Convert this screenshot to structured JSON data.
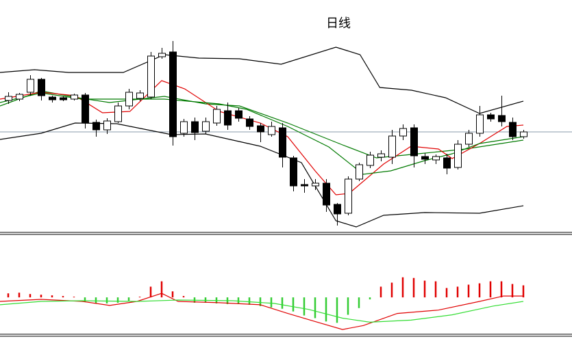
{
  "chart_data": [
    {
      "type": "candlestick",
      "title": "日线",
      "ylim": [
        0,
        340
      ],
      "up_color": "#ffffff",
      "down_color": "#000000",
      "last_price_line": true,
      "open": [
        193,
        195,
        205,
        224,
        198,
        197,
        195,
        201,
        161,
        150,
        162,
        185,
        196,
        198,
        257,
        264,
        145,
        162,
        148,
        160,
        178,
        178,
        166,
        156,
        143,
        153,
        109,
        70,
        68,
        72,
        41,
        28,
        78,
        98,
        110,
        110,
        141,
        153,
        111,
        106,
        109,
        95,
        129,
        145,
        172,
        171,
        161,
        140
      ],
      "high": [
        205,
        204,
        230,
        226,
        200,
        199,
        203,
        204,
        165,
        167,
        190,
        210,
        208,
        264,
        270,
        280,
        166,
        168,
        168,
        185,
        190,
        182,
        170,
        160,
        162,
        160,
        112,
        78,
        78,
        78,
        43,
        82,
        102,
        118,
        120,
        150,
        158,
        158,
        116,
        114,
        115,
        135,
        150,
        185,
        175,
        200,
        168,
        150
      ],
      "low": [
        188,
        192,
        200,
        193,
        190,
        192,
        193,
        152,
        140,
        144,
        160,
        180,
        192,
        195,
        254,
        127,
        140,
        135,
        144,
        156,
        150,
        162,
        150,
        132,
        140,
        95,
        60,
        58,
        62,
        30,
        10,
        25,
        75,
        94,
        104,
        100,
        135,
        95,
        100,
        100,
        85,
        92,
        125,
        140,
        162,
        155,
        135,
        137
      ],
      "close": [
        199,
        202,
        224,
        200,
        194,
        194,
        201,
        160,
        150,
        163,
        185,
        205,
        204,
        258,
        262,
        140,
        162,
        146,
        162,
        180,
        157,
        167,
        155,
        147,
        155,
        110,
        68,
        68,
        72,
        40,
        27,
        78,
        99,
        113,
        115,
        141,
        152,
        112,
        107,
        111,
        94,
        129,
        145,
        172,
        166,
        162,
        140,
        147
      ],
      "series": [
        {
          "name": "upper",
          "color": "#000000",
          "x": [
            -0.75,
            2.4,
            5.5,
            10.5,
            14.25,
            17.4,
            21.1,
            24.9,
            29.9,
            32.1,
            33.9,
            36.8,
            39.9,
            43,
            47
          ],
          "values": [
            234,
            238,
            234,
            234,
            260,
            255,
            254,
            246,
            271,
            260,
            212,
            208,
            197,
            174,
            192
          ]
        },
        {
          "name": "middle",
          "color": "#007a00",
          "x": [
            -0.75,
            3,
            6.75,
            9.25,
            14.25,
            18,
            21.1,
            25.5,
            30.5,
            33.6,
            37.4,
            41.75,
            47
          ],
          "values": [
            185,
            207,
            196,
            190,
            199,
            188,
            185,
            160,
            128,
            109,
            115,
            122,
            135
          ]
        },
        {
          "name": "lower",
          "color": "#000000",
          "x": [
            -0.75,
            3,
            6.1,
            9.9,
            14.9,
            18,
            23,
            26.75,
            29.9,
            31.75,
            34.25,
            38,
            43,
            47
          ],
          "values": [
            136,
            145,
            160,
            159,
            143,
            144,
            126,
            102,
            17,
            8,
            25,
            29,
            28,
            39
          ]
        },
        {
          "name": "ma5",
          "color": "#e00000",
          "x": [
            -0.75,
            3,
            6.1,
            8.6,
            11.1,
            14,
            16.1,
            19.25,
            23,
            25.5,
            28,
            29.9,
            31.1,
            34.25,
            36.75,
            39.25,
            40.5,
            43,
            45.5,
            47
          ],
          "values": [
            195,
            205,
            200,
            175,
            177,
            222,
            210,
            177,
            160,
            140,
            90,
            55,
            57,
            100,
            126,
            122,
            108,
            130,
            155,
            157
          ]
        },
        {
          "name": "ma10",
          "color": "#007a00",
          "x": [
            -0.75,
            3,
            6.75,
            10.5,
            14.25,
            19.25,
            21.75,
            25.5,
            29.25,
            32.4,
            34.9,
            38,
            40.5,
            43,
            47
          ],
          "values": [
            190,
            204,
            195,
            195,
            195,
            188,
            180,
            155,
            125,
            85,
            90,
            105,
            115,
            130,
            140
          ]
        }
      ]
    },
    {
      "type": "macd",
      "ylim": [
        -55,
        94
      ],
      "pos_color": "#e00000",
      "neg_color": "#33cc33",
      "values": [
        6,
        7,
        5,
        4,
        3,
        2,
        1,
        -7,
        -9,
        -9,
        -8,
        -5,
        1,
        16,
        24,
        9,
        2,
        -8,
        -8,
        -9,
        -10,
        -10,
        -11,
        -13,
        -15,
        -17,
        -21,
        -27,
        -31,
        -36,
        -38,
        -26,
        -16,
        -3,
        16,
        22,
        30,
        29,
        25,
        24,
        14,
        16,
        19,
        21,
        24,
        24,
        20,
        18
      ],
      "series": [
        {
          "name": "dif",
          "color": "#e00000",
          "x": [
            -0.75,
            3,
            6.75,
            9.25,
            11.75,
            14,
            15.5,
            19.25,
            23,
            25.5,
            28,
            30.5,
            32.4,
            35.5,
            39.25,
            43,
            45.2,
            47
          ],
          "values": [
            -6,
            -3,
            -6,
            -12,
            -6,
            6,
            -6,
            -8,
            -11,
            -24,
            -36,
            -48,
            -42,
            -24,
            -19,
            -6,
            2,
            2
          ]
        },
        {
          "name": "dea",
          "color": "#33dd33",
          "x": [
            -0.75,
            3,
            6.75,
            11.75,
            15.5,
            20.5,
            24.25,
            27.4,
            30.5,
            33,
            36.75,
            40.5,
            44.25,
            47
          ],
          "values": [
            -11,
            -6,
            -5,
            -6,
            -4,
            -5,
            -9,
            -18,
            -31,
            -37,
            -34,
            -26,
            -13,
            -6
          ]
        }
      ]
    }
  ]
}
